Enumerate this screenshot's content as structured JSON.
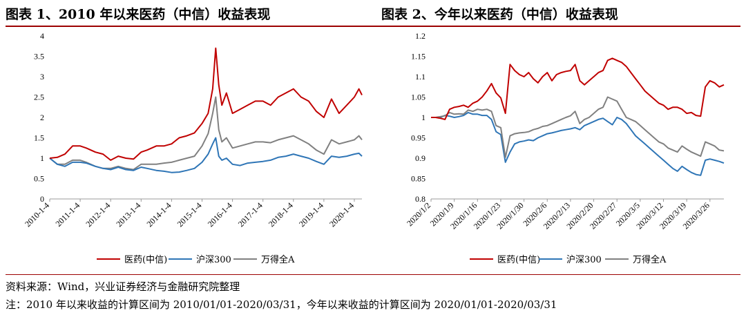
{
  "figure1": {
    "title": "图表 1、2010 年以来医药（中信）收益表现"
  },
  "figure2": {
    "title": "图表 2、今年以来医药（中信）收益表现"
  },
  "source_text": "资料来源：Wind，兴业证券经济与金融研究院整理",
  "note_text": "注：2010 年以来收益的计算区间为 2010/01/01-2020/03/31，今年以来收益的计算区间为 2020/01/01-2020/03/31",
  "colors": {
    "pharma": "#c00000",
    "hs300": "#2e75b6",
    "wind_a": "#808080",
    "accent": "#9c0000"
  },
  "chart_data": [
    {
      "type": "line",
      "title": "2010 年以来医药（中信）收益表现",
      "ylim": [
        0,
        4
      ],
      "yticks": [
        "0",
        "0.5",
        "1",
        "1.5",
        "2",
        "2.5",
        "3",
        "3.5",
        "4"
      ],
      "xticks": [
        "2010-1-4",
        "2011-1-4",
        "2012-1-4",
        "2013-1-4",
        "2014-1-4",
        "2015-1-4",
        "2016-1-4",
        "2017-1-4",
        "2018-1-4",
        "2019-1-4",
        "2020-1-4"
      ],
      "x": [
        2010.0,
        2010.25,
        2010.5,
        2010.75,
        2011.0,
        2011.2,
        2011.5,
        2011.75,
        2012.0,
        2012.25,
        2012.5,
        2012.75,
        2013.0,
        2013.2,
        2013.5,
        2013.75,
        2014.0,
        2014.25,
        2014.5,
        2014.75,
        2015.0,
        2015.2,
        2015.35,
        2015.45,
        2015.55,
        2015.65,
        2015.8,
        2016.0,
        2016.25,
        2016.5,
        2016.75,
        2017.0,
        2017.25,
        2017.5,
        2017.75,
        2018.0,
        2018.25,
        2018.5,
        2018.75,
        2019.0,
        2019.25,
        2019.5,
        2019.75,
        2020.0,
        2020.15,
        2020.25
      ],
      "series": [
        {
          "name": "医药(中信)",
          "values": [
            1.0,
            1.02,
            1.1,
            1.3,
            1.3,
            1.25,
            1.15,
            1.1,
            0.95,
            1.05,
            1.0,
            0.98,
            1.15,
            1.2,
            1.3,
            1.3,
            1.35,
            1.5,
            1.55,
            1.62,
            1.85,
            2.1,
            2.7,
            3.7,
            2.8,
            2.3,
            2.6,
            2.1,
            2.2,
            2.3,
            2.4,
            2.4,
            2.3,
            2.5,
            2.6,
            2.7,
            2.5,
            2.4,
            2.15,
            2.0,
            2.45,
            2.1,
            2.3,
            2.5,
            2.7,
            2.55
          ]
        },
        {
          "name": "沪深300",
          "values": [
            1.0,
            0.85,
            0.8,
            0.9,
            0.9,
            0.88,
            0.8,
            0.75,
            0.72,
            0.78,
            0.72,
            0.7,
            0.78,
            0.75,
            0.7,
            0.68,
            0.65,
            0.66,
            0.7,
            0.75,
            0.9,
            1.1,
            1.35,
            1.5,
            1.05,
            0.95,
            1.0,
            0.85,
            0.82,
            0.88,
            0.9,
            0.92,
            0.95,
            1.02,
            1.05,
            1.1,
            1.05,
            1.0,
            0.92,
            0.85,
            1.05,
            1.02,
            1.05,
            1.1,
            1.12,
            1.05
          ]
        },
        {
          "name": "万得全A",
          "values": [
            1.0,
            0.85,
            0.85,
            0.95,
            0.95,
            0.9,
            0.8,
            0.75,
            0.75,
            0.8,
            0.75,
            0.72,
            0.85,
            0.85,
            0.85,
            0.88,
            0.9,
            0.95,
            1.0,
            1.05,
            1.3,
            1.6,
            2.1,
            2.5,
            1.7,
            1.4,
            1.5,
            1.25,
            1.3,
            1.35,
            1.4,
            1.4,
            1.38,
            1.45,
            1.5,
            1.55,
            1.45,
            1.35,
            1.2,
            1.1,
            1.45,
            1.35,
            1.4,
            1.45,
            1.55,
            1.45
          ]
        }
      ]
    },
    {
      "type": "line",
      "title": "今年以来医药（中信）收益表现",
      "ylim": [
        0.8,
        1.2
      ],
      "yticks": [
        "0.8",
        "0.85",
        "0.9",
        "0.95",
        "1",
        "1.05",
        "1.1",
        "1.15",
        "1.2"
      ],
      "xticks": [
        "2020/1/2",
        "2020/1/9",
        "2020/1/16",
        "2020/1/23",
        "2020/1/30",
        "2020/2/6",
        "2020/2/13",
        "2020/2/20",
        "2020/2/27",
        "2020/3/5",
        "2020/3/12",
        "2020/3/19",
        "2020/3/26"
      ],
      "x": [
        0,
        1,
        2,
        3,
        4,
        5,
        6,
        7,
        8,
        9,
        10,
        11,
        12,
        13,
        14,
        15,
        16,
        17,
        18,
        19,
        20,
        21,
        22,
        23,
        24,
        25,
        26,
        27,
        28,
        29,
        30,
        31,
        32,
        33,
        34,
        35,
        36,
        37,
        38,
        39,
        40,
        41,
        42,
        43,
        44,
        45,
        46,
        47,
        48,
        49,
        50,
        51,
        52,
        53,
        54,
        55,
        56,
        57,
        58,
        59,
        60,
        61,
        62,
        63
      ],
      "series": [
        {
          "name": "医药(中信)",
          "values": [
            1.0,
            1.0,
            0.998,
            0.995,
            1.02,
            1.025,
            1.027,
            1.03,
            1.025,
            1.035,
            1.04,
            1.05,
            1.065,
            1.083,
            1.06,
            1.048,
            1.01,
            1.13,
            1.115,
            1.105,
            1.1,
            1.11,
            1.095,
            1.085,
            1.1,
            1.11,
            1.09,
            1.105,
            1.11,
            1.113,
            1.115,
            1.13,
            1.09,
            1.08,
            1.09,
            1.1,
            1.11,
            1.115,
            1.14,
            1.145,
            1.14,
            1.135,
            1.125,
            1.11,
            1.095,
            1.08,
            1.065,
            1.055,
            1.045,
            1.035,
            1.03,
            1.02,
            1.025,
            1.025,
            1.02,
            1.01,
            1.012,
            1.005,
            1.003,
            1.075,
            1.09,
            1.085,
            1.075,
            1.08
          ]
        },
        {
          "name": "沪深300",
          "values": [
            1.0,
            1.0,
            1.0,
            1.005,
            1.003,
            1.0,
            1.002,
            1.005,
            1.012,
            1.008,
            1.008,
            1.005,
            1.005,
            0.995,
            0.965,
            0.958,
            0.89,
            0.915,
            0.935,
            0.94,
            0.942,
            0.945,
            0.943,
            0.95,
            0.955,
            0.96,
            0.962,
            0.965,
            0.968,
            0.97,
            0.972,
            0.975,
            0.97,
            0.98,
            0.985,
            0.99,
            0.995,
            0.998,
            0.99,
            0.982,
            1.0,
            0.995,
            0.985,
            0.97,
            0.955,
            0.945,
            0.935,
            0.925,
            0.915,
            0.905,
            0.895,
            0.885,
            0.875,
            0.868,
            0.88,
            0.872,
            0.865,
            0.86,
            0.858,
            0.895,
            0.898,
            0.895,
            0.892,
            0.888
          ]
        },
        {
          "name": "万得全A",
          "values": [
            1.0,
            1.0,
            1.002,
            1.004,
            1.012,
            1.008,
            1.009,
            1.008,
            1.018,
            1.015,
            1.02,
            1.018,
            1.02,
            1.015,
            0.98,
            0.975,
            0.902,
            0.955,
            0.96,
            0.962,
            0.963,
            0.965,
            0.97,
            0.973,
            0.978,
            0.98,
            0.985,
            0.99,
            0.995,
            1.0,
            1.004,
            1.015,
            0.985,
            0.995,
            1.0,
            1.01,
            1.02,
            1.025,
            1.05,
            1.045,
            1.04,
            1.02,
            1.0,
            0.995,
            0.99,
            0.98,
            0.97,
            0.96,
            0.95,
            0.94,
            0.935,
            0.925,
            0.92,
            0.915,
            0.93,
            0.922,
            0.915,
            0.91,
            0.905,
            0.94,
            0.935,
            0.93,
            0.92,
            0.918
          ]
        }
      ]
    }
  ]
}
